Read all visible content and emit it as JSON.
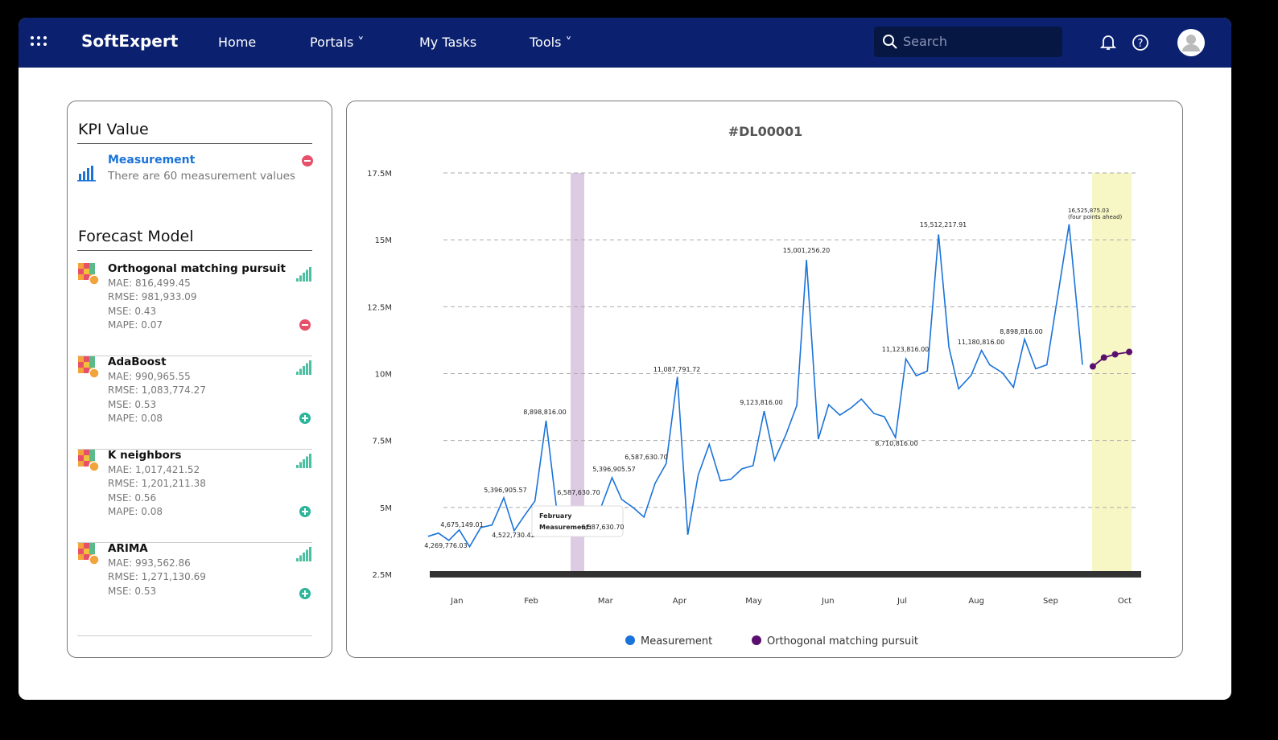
{
  "nav": {
    "brand": "SoftExpert",
    "items": [
      "Home",
      "Portals",
      "My Tasks",
      "Tools"
    ],
    "search_placeholder": "Search"
  },
  "kpi": {
    "title": "KPI Value",
    "item": "Measurement",
    "description": "There are 60 measurement values"
  },
  "forecast": {
    "title": "Forecast Model",
    "models": [
      {
        "name": "Orthogonal matching pursuit",
        "metrics": [
          "MAE: 816,499.45",
          "RMSE: 981,933.09",
          "MSE: 0.43",
          "MAPE: 0.07"
        ],
        "selected": true
      },
      {
        "name": "AdaBoost",
        "metrics": [
          "MAE: 990,965.55",
          "RMSE: 1,083,774.27",
          "MSE: 0.53",
          "MAPE: 0.08"
        ],
        "selected": false
      },
      {
        "name": "K neighbors",
        "metrics": [
          "MAE: 1,017,421.52",
          "RMSE: 1,201,211.38",
          "MSE: 0.56",
          "MAPE: 0.08"
        ],
        "selected": false
      },
      {
        "name": "ARIMA",
        "metrics": [
          "MAE: 993,562.86",
          "RMSE: 1,271,130.69",
          "MSE: 0.53"
        ],
        "selected": false
      }
    ]
  },
  "chart_data": {
    "type": "line",
    "title": "#DL00001",
    "xlim": [
      -0.4,
      9.2
    ],
    "xticks": [
      {
        "value": 0,
        "label": "Jan"
      },
      {
        "value": 1,
        "label": "Feb"
      },
      {
        "value": 2,
        "label": "Mar"
      },
      {
        "value": 3,
        "label": "Apr"
      },
      {
        "value": 4,
        "label": "May"
      },
      {
        "value": 5,
        "label": "Jun"
      },
      {
        "value": 6,
        "label": "Jul"
      },
      {
        "value": 7,
        "label": "Aug"
      },
      {
        "value": 8,
        "label": "Sep"
      },
      {
        "value": 9,
        "label": "Oct"
      }
    ],
    "ylim": [
      2500000,
      17500000
    ],
    "yticks": [
      {
        "value": 2500000,
        "label": "2.5M"
      },
      {
        "value": 5000000,
        "label": "5M"
      },
      {
        "value": 7500000,
        "label": "7.5M"
      },
      {
        "value": 10000000,
        "label": "10M"
      },
      {
        "value": 12500000,
        "label": "12.5M"
      },
      {
        "value": 15000000,
        "label": "15M"
      },
      {
        "value": 17500000,
        "label": "17.5M"
      }
    ],
    "grid": true,
    "series": [
      {
        "name": "Measurement",
        "color": "#1a73d9",
        "x": [
          -0.39,
          -0.25,
          -0.11,
          0.03,
          0.17,
          0.32,
          0.47,
          0.63,
          0.77,
          0.91,
          1.05,
          1.2,
          1.34,
          1.49,
          1.63,
          1.79,
          1.94,
          2.09,
          2.22,
          2.37,
          2.52,
          2.67,
          2.82,
          2.97,
          3.11,
          3.25,
          3.4,
          3.55,
          3.69,
          3.84,
          3.99,
          4.14,
          4.28,
          4.43,
          4.58,
          4.71,
          4.87,
          5.01,
          5.16,
          5.31,
          5.45,
          5.62,
          5.76,
          5.91,
          6.05,
          6.19,
          6.34,
          6.49,
          6.63,
          6.76,
          6.93,
          7.07,
          7.18,
          7.35,
          7.5,
          7.65,
          7.8,
          7.95,
          8.25,
          8.43
        ],
        "values": [
          3920000,
          4040000,
          3770000,
          4160000,
          3530000,
          4250000,
          4340000,
          5360000,
          4130000,
          4700000,
          5240000,
          8240000,
          5000000,
          4100000,
          4700000,
          4400000,
          5000000,
          6110000,
          5300000,
          5000000,
          4640000,
          5900000,
          6640000,
          9880000,
          3980000,
          6200000,
          7360000,
          5990000,
          6050000,
          6440000,
          6560000,
          8600000,
          6770000,
          7700000,
          8810000,
          14250000,
          7550000,
          8840000,
          8450000,
          8720000,
          9050000,
          8510000,
          8390000,
          7610000,
          10550000,
          9920000,
          10100000,
          15200000,
          10990000,
          9430000,
          9940000,
          10870000,
          10330000,
          10030000,
          9490000,
          11290000,
          10180000,
          10330000,
          15580000,
          10330000
        ]
      },
      {
        "name": "Orthogonal matching pursuit",
        "color": "#5a0f6e",
        "x": [
          8.57,
          8.72,
          8.87,
          9.06
        ],
        "values": [
          10270000,
          10600000,
          10720000,
          10810000
        ]
      }
    ],
    "annotations": [
      "4,269,776.03",
      "4,675,149.01",
      "5,396,905.57",
      "4,522,730.42",
      "8,898,816.00",
      "6,587,630.70",
      "5,396,905.57",
      "6,587,630.70",
      "11,087,791.72",
      "9,123,816.00",
      "15,001,256.20",
      "11,123,816.00",
      "8,710,816.00",
      "15,512,217.91",
      "11,180,816.00",
      "8,898,816.00",
      "16,525,875.03",
      "(four points ahead)"
    ],
    "tooltip": {
      "title": "February",
      "label": "Measurement:",
      "value": "6,587,630.70"
    }
  }
}
